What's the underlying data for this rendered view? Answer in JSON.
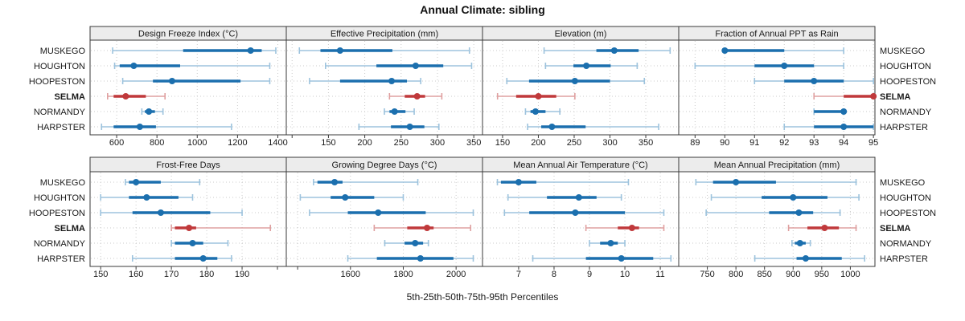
{
  "title": "Annual Climate: sibling",
  "caption": "5th-25th-50th-75th-95th Percentiles",
  "sites": [
    "MUSKEGO",
    "HOUGHTON",
    "HOOPESTON",
    "SELMA",
    "NORMANDY",
    "HARPSTER"
  ],
  "highlighted_site": "SELMA",
  "colors": {
    "series_blue": "#1b6fae",
    "series_blue_light": "#9dc3dd",
    "highlight_red": "#c0393b",
    "highlight_red_light": "#dfa0a0",
    "strip_bg": "#ececec",
    "panel_border": "#3a3a3a",
    "grid": "#cbcbcb",
    "text": "#1a1a1a"
  },
  "chart_data": {
    "type": "scatter",
    "subtype": "lattice-percentile-interval-dotplot",
    "xlabel": "5th-25th-50th-75th-95th Percentiles",
    "percentiles": [
      5,
      25,
      50,
      75,
      95
    ],
    "legend": "none",
    "grid": "dotted",
    "panels": [
      {
        "label": "Design Freeze Index (°C)",
        "ticks": [
          600,
          800,
          1000,
          1200,
          1400
        ],
        "minor_ticks": [],
        "xlim": [
          468,
          1442
        ],
        "series": [
          {
            "site": "MUSKEGO",
            "p": [
              580,
              930,
              1265,
              1320,
              1390
            ]
          },
          {
            "site": "HOUGHTON",
            "p": [
              590,
              615,
              685,
              915,
              1360
            ]
          },
          {
            "site": "HOOPESTON",
            "p": [
              630,
              780,
              875,
              1215,
              1360
            ]
          },
          {
            "site": "SELMA",
            "p": [
              555,
              585,
              645,
              745,
              840
            ]
          },
          {
            "site": "NORMANDY",
            "p": [
              725,
              740,
              760,
              790,
              830
            ]
          },
          {
            "site": "HARPSTER",
            "p": [
              525,
              585,
              715,
              795,
              1170
            ]
          }
        ]
      },
      {
        "label": "Effective Precipitation (mm)",
        "ticks": [
          150,
          200,
          250,
          300,
          350
        ],
        "minor_ticks": [
          100
        ],
        "xlim": [
          92,
          362
        ],
        "series": [
          {
            "site": "MUSKEGO",
            "p": [
              110,
              139,
              166,
              238,
              344
            ]
          },
          {
            "site": "HOUGHTON",
            "p": [
              146,
              216,
              270,
              308,
              347
            ]
          },
          {
            "site": "HOOPESTON",
            "p": [
              124,
              166,
              237,
              258,
              277
            ]
          },
          {
            "site": "SELMA",
            "p": [
              234,
              255,
              272,
              283,
              306
            ]
          },
          {
            "site": "NORMANDY",
            "p": [
              227,
              234,
              241,
              256,
              268
            ]
          },
          {
            "site": "HARPSTER",
            "p": [
              192,
              236,
              262,
              282,
              302
            ]
          }
        ]
      },
      {
        "label": "Elevation (m)",
        "ticks": [
          150,
          200,
          250,
          300,
          350
        ],
        "minor_ticks": [],
        "xlim": [
          122,
          396
        ],
        "series": [
          {
            "site": "MUSKEGO",
            "p": [
              208,
              281,
              306,
              340,
              384
            ]
          },
          {
            "site": "HOUGHTON",
            "p": [
              210,
              249,
              267,
              301,
              338
            ]
          },
          {
            "site": "HOOPESTON",
            "p": [
              156,
              187,
              251,
              300,
              348
            ]
          },
          {
            "site": "SELMA",
            "p": [
              143,
              169,
              200,
              225,
              251
            ]
          },
          {
            "site": "NORMANDY",
            "p": [
              182,
              189,
              196,
              210,
              230
            ]
          },
          {
            "site": "HARPSTER",
            "p": [
              185,
              204,
              219,
              266,
              368
            ]
          }
        ]
      },
      {
        "label": "Fraction of Annual PPT as Rain",
        "ticks": [
          89,
          90,
          91,
          92,
          93,
          94,
          95
        ],
        "minor_ticks": [],
        "xlim": [
          88.45,
          95.05
        ],
        "series": [
          {
            "site": "MUSKEGO",
            "p": [
              90,
              90,
              90,
              92,
              94
            ]
          },
          {
            "site": "HOUGHTON",
            "p": [
              89,
              91,
              92,
              93,
              94
            ]
          },
          {
            "site": "HOOPESTON",
            "p": [
              91,
              92,
              93,
              94,
              95
            ]
          },
          {
            "site": "SELMA",
            "p": [
              93,
              94,
              95,
              95,
              95
            ]
          },
          {
            "site": "NORMANDY",
            "p": [
              93,
              93,
              94,
              94,
              94
            ]
          },
          {
            "site": "HARPSTER",
            "p": [
              92,
              93,
              94,
              95,
              95
            ]
          }
        ]
      },
      {
        "label": "Frost-Free Days",
        "ticks": [
          150,
          160,
          170,
          180,
          190
        ],
        "minor_ticks": [
          200
        ],
        "xlim": [
          147,
          202.5
        ],
        "series": [
          {
            "site": "MUSKEGO",
            "p": [
              157,
              158,
              160,
              167,
              178
            ]
          },
          {
            "site": "HOUGHTON",
            "p": [
              150,
              158,
              163,
              172,
              176
            ]
          },
          {
            "site": "HOOPESTON",
            "p": [
              150,
              159,
              167,
              181,
              190
            ]
          },
          {
            "site": "SELMA",
            "p": [
              170,
              171,
              175,
              177,
              198
            ]
          },
          {
            "site": "NORMANDY",
            "p": [
              170,
              171,
              176,
              179,
              186
            ]
          },
          {
            "site": "HARPSTER",
            "p": [
              159,
              171,
              179,
              183,
              187
            ]
          }
        ]
      },
      {
        "label": "Growing Degree Days (°C)",
        "ticks": [
          1600,
          1800,
          2000
        ],
        "minor_ticks": [
          1400
        ],
        "xlim": [
          1357,
          2100
        ],
        "series": [
          {
            "site": "MUSKEGO",
            "p": [
              1460,
              1475,
              1540,
              1570,
              1855
            ]
          },
          {
            "site": "HOUGHTON",
            "p": [
              1410,
              1525,
              1580,
              1690,
              1800
            ]
          },
          {
            "site": "HOOPESTON",
            "p": [
              1445,
              1590,
              1705,
              1885,
              2065
            ]
          },
          {
            "site": "SELMA",
            "p": [
              1690,
              1815,
              1890,
              1915,
              2055
            ]
          },
          {
            "site": "NORMANDY",
            "p": [
              1730,
              1805,
              1845,
              1875,
              1895
            ]
          },
          {
            "site": "HARPSTER",
            "p": [
              1590,
              1700,
              1865,
              1990,
              2065
            ]
          }
        ]
      },
      {
        "label": "Mean Annual Air Temperature (°C)",
        "ticks": [
          7,
          8,
          9,
          10,
          11
        ],
        "minor_ticks": [],
        "xlim": [
          5.98,
          11.52
        ],
        "series": [
          {
            "site": "MUSKEGO",
            "p": [
              6.4,
              6.5,
              7.0,
              7.5,
              10.1
            ]
          },
          {
            "site": "HOUGHTON",
            "p": [
              6.7,
              7.8,
              8.7,
              9.2,
              9.9
            ]
          },
          {
            "site": "HOOPESTON",
            "p": [
              6.6,
              7.3,
              8.6,
              10.0,
              11.1
            ]
          },
          {
            "site": "SELMA",
            "p": [
              8.9,
              9.8,
              10.2,
              10.4,
              11.1
            ]
          },
          {
            "site": "NORMANDY",
            "p": [
              9.0,
              9.3,
              9.6,
              9.8,
              10.0
            ]
          },
          {
            "site": "HARPSTER",
            "p": [
              7.4,
              8.9,
              9.9,
              10.8,
              11.3
            ]
          }
        ]
      },
      {
        "label": "Mean Annual Precipitation (mm)",
        "ticks": [
          750,
          800,
          850,
          900,
          950,
          1000
        ],
        "minor_ticks": [],
        "xlim": [
          700,
          1043
        ],
        "series": [
          {
            "site": "MUSKEGO",
            "p": [
              730,
              760,
              800,
              870,
              1010
            ]
          },
          {
            "site": "HOUGHTON",
            "p": [
              757,
              845,
              900,
              960,
              1015
            ]
          },
          {
            "site": "HOOPESTON",
            "p": [
              748,
              858,
              910,
              935,
              982
            ]
          },
          {
            "site": "SELMA",
            "p": [
              892,
              925,
              955,
              980,
              1010
            ]
          },
          {
            "site": "NORMANDY",
            "p": [
              898,
              903,
              912,
              922,
              930
            ]
          },
          {
            "site": "HARPSTER",
            "p": [
              833,
              906,
              922,
              985,
              1025
            ]
          }
        ]
      }
    ]
  }
}
